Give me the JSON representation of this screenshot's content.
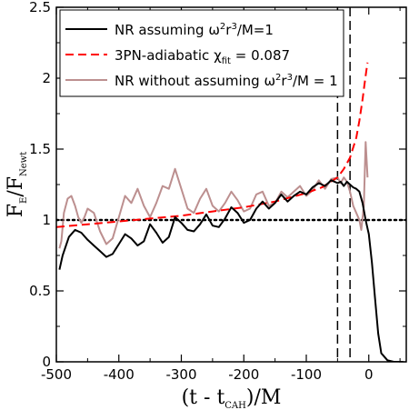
{
  "chart_data": {
    "type": "line",
    "xlabel": {
      "pre": "(t - t",
      "sub": "CAH",
      "post": ")/M"
    },
    "ylabel": {
      "pre": "F",
      "sub1": "E",
      "mid": "/F",
      "sub2": "Newt"
    },
    "xlim": [
      -500,
      60
    ],
    "ylim": [
      0,
      2.5
    ],
    "x_ticks": [
      -500,
      -400,
      -300,
      -200,
      -100,
      0
    ],
    "y_ticks": [
      0,
      0.5,
      1,
      1.5,
      2,
      2.5
    ],
    "x_tick_labels": [
      "-500",
      "-400",
      "-300",
      "-200",
      "-100",
      "0"
    ],
    "y_tick_labels": [
      "0",
      "0.5",
      "1",
      "1.5",
      "2",
      "2.5"
    ],
    "grid": false,
    "legend_position": "top-left",
    "legend": [
      {
        "series": "nr_assuming",
        "pre": "NR assuming ω",
        "sup1": "2",
        "mid": "r",
        "sup2": "3",
        "post": "/M=1"
      },
      {
        "series": "pn_adiabatic",
        "pre": "3PN-adiabatic χ",
        "sub": "fit",
        "post": " = 0.087"
      },
      {
        "series": "nr_without",
        "pre": "NR without assuming ω",
        "sup1": "2",
        "mid": "r",
        "sup2": "3",
        "post": "/M = 1"
      }
    ],
    "series": [
      {
        "id": "nr_assuming",
        "color": "#000000",
        "dash": "solid",
        "x": [
          -495,
          -490,
          -480,
          -470,
          -460,
          -450,
          -440,
          -430,
          -420,
          -410,
          -400,
          -390,
          -380,
          -370,
          -360,
          -350,
          -340,
          -330,
          -320,
          -310,
          -300,
          -290,
          -280,
          -270,
          -260,
          -250,
          -240,
          -230,
          -220,
          -210,
          -200,
          -190,
          -180,
          -170,
          -160,
          -150,
          -140,
          -130,
          -120,
          -110,
          -100,
          -90,
          -80,
          -70,
          -60,
          -50,
          -45,
          -40,
          -35,
          -30,
          -25,
          -20,
          -15,
          -10,
          -5,
          0,
          5,
          10,
          15,
          20,
          30,
          40,
          55
        ],
        "y": [
          0.65,
          0.75,
          0.88,
          0.93,
          0.91,
          0.86,
          0.82,
          0.78,
          0.74,
          0.76,
          0.83,
          0.9,
          0.87,
          0.82,
          0.85,
          0.97,
          0.91,
          0.84,
          0.88,
          1.02,
          0.98,
          0.93,
          0.92,
          0.97,
          1.04,
          0.96,
          0.95,
          1.01,
          1.09,
          1.05,
          0.98,
          1.0,
          1.08,
          1.13,
          1.08,
          1.12,
          1.18,
          1.13,
          1.17,
          1.2,
          1.18,
          1.23,
          1.26,
          1.24,
          1.28,
          1.26,
          1.27,
          1.24,
          1.27,
          1.25,
          1.23,
          1.22,
          1.2,
          1.12,
          1.0,
          0.9,
          0.7,
          0.45,
          0.2,
          0.06,
          0.01,
          0.0,
          0.0
        ]
      },
      {
        "id": "pn_adiabatic",
        "color": "#ff0000",
        "dash": "dashed",
        "x": [
          -500,
          -450,
          -400,
          -350,
          -300,
          -250,
          -200,
          -150,
          -100,
          -75,
          -50,
          -40,
          -30,
          -20,
          -15,
          -10,
          -7,
          -4,
          -2
        ],
        "y": [
          0.95,
          0.97,
          0.99,
          1.01,
          1.03,
          1.06,
          1.09,
          1.13,
          1.19,
          1.23,
          1.3,
          1.36,
          1.44,
          1.58,
          1.7,
          1.85,
          1.95,
          2.05,
          2.11
        ]
      },
      {
        "id": "nr_without",
        "color": "#bc8f8f",
        "dash": "solid",
        "x": [
          -495,
          -492,
          -488,
          -482,
          -476,
          -470,
          -465,
          -460,
          -455,
          -450,
          -440,
          -430,
          -420,
          -410,
          -400,
          -390,
          -380,
          -370,
          -360,
          -350,
          -340,
          -330,
          -320,
          -310,
          -300,
          -290,
          -280,
          -270,
          -260,
          -250,
          -240,
          -230,
          -220,
          -210,
          -200,
          -190,
          -180,
          -170,
          -160,
          -150,
          -140,
          -130,
          -120,
          -110,
          -100,
          -90,
          -80,
          -70,
          -60,
          -50,
          -45,
          -40,
          -35,
          -30,
          -25,
          -20,
          -15,
          -12,
          -8,
          -5,
          -2
        ],
        "y": [
          0.8,
          0.85,
          1.05,
          1.15,
          1.17,
          1.1,
          1.02,
          0.98,
          1.02,
          1.08,
          1.05,
          0.92,
          0.83,
          0.87,
          1.02,
          1.17,
          1.12,
          1.22,
          1.1,
          1.02,
          1.12,
          1.24,
          1.22,
          1.36,
          1.22,
          1.08,
          1.05,
          1.15,
          1.22,
          1.1,
          1.06,
          1.12,
          1.2,
          1.14,
          1.06,
          1.08,
          1.18,
          1.2,
          1.1,
          1.12,
          1.2,
          1.16,
          1.2,
          1.24,
          1.17,
          1.21,
          1.28,
          1.22,
          1.29,
          1.3,
          1.26,
          1.3,
          1.27,
          1.2,
          1.1,
          1.05,
          1.0,
          0.93,
          1.1,
          1.55,
          1.3
        ]
      }
    ],
    "reference_lines": [
      {
        "kind": "horizontal",
        "y": 1,
        "color": "#000000",
        "dash": "dotted"
      },
      {
        "kind": "vertical",
        "x": -50,
        "color": "#000000",
        "dash": "dashed"
      },
      {
        "kind": "vertical",
        "x": -30,
        "color": "#000000",
        "dash": "dashed"
      }
    ]
  }
}
